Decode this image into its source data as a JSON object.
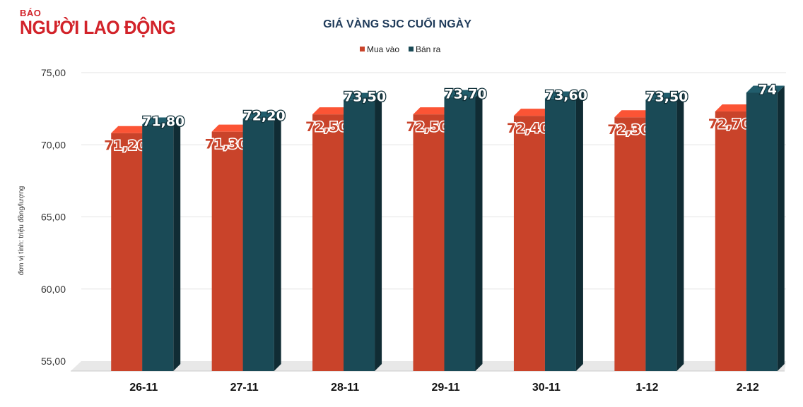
{
  "logo": {
    "top": "BÁO",
    "main": "NGƯỜI LAO ĐỘNG"
  },
  "chart_data": {
    "type": "bar",
    "title": "GIÁ VÀNG SJC CUỐI NGÀY",
    "ylabel": "đơn vị tính: triệu đồng/lượng",
    "xlabel": "",
    "ylim": [
      55,
      75
    ],
    "yticks": [
      "55,00",
      "60,00",
      "65,00",
      "70,00",
      "75,00"
    ],
    "ytick_values": [
      55,
      60,
      65,
      70,
      75
    ],
    "categories": [
      "26-11",
      "27-11",
      "28-11",
      "29-11",
      "30-11",
      "1-12",
      "2-12"
    ],
    "series": [
      {
        "name": "Mua vào",
        "color": "#c9432a",
        "values": [
          71.2,
          71.3,
          72.5,
          72.5,
          72.4,
          72.3,
          72.7
        ],
        "labels": [
          "71,20",
          "71,30",
          "72,50",
          "72,50",
          "72,40",
          "72,30",
          "72,70"
        ]
      },
      {
        "name": "Bán ra",
        "color": "#1a4a56",
        "values": [
          71.8,
          72.2,
          73.5,
          73.7,
          73.6,
          73.5,
          74
        ],
        "labels": [
          "71,80",
          "72,20",
          "73,50",
          "73,70",
          "73,60",
          "73,50",
          "74"
        ]
      }
    ],
    "grid": true,
    "legend": "top-center"
  }
}
